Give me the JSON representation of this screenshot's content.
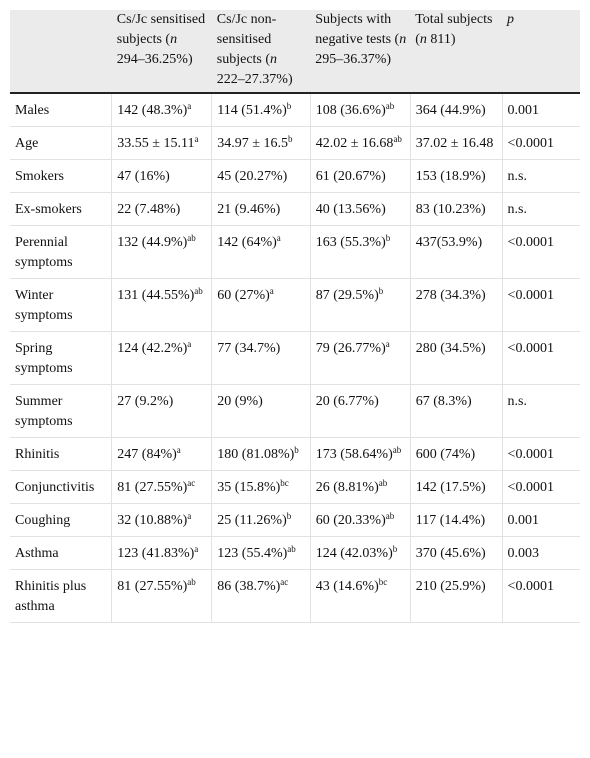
{
  "table": {
    "headers": [
      {
        "pre": "",
        "em": "",
        "post": ""
      },
      {
        "pre": "Cs/Jc sensitised subjects (",
        "em": "n",
        "post": " 294–36.25%)"
      },
      {
        "pre": "Cs/Jc non-sensitised subjects (",
        "em": "n",
        "post": " 222–27.37%)"
      },
      {
        "pre": "Subjects with negative tests (",
        "em": "n",
        "post": " 295–36.37%)"
      },
      {
        "pre": "Total subjects (",
        "em": "n",
        "post": " 811)"
      },
      {
        "pre": "",
        "em": "p",
        "post": ""
      }
    ],
    "rows": [
      {
        "label": "Males",
        "cells": [
          {
            "text": "142 (48.3%)",
            "sup": "a"
          },
          {
            "text": "114 (51.4%)",
            "sup": "b"
          },
          {
            "text": "108 (36.6%)",
            "sup": "ab"
          },
          {
            "text": "364 (44.9%)",
            "sup": ""
          },
          {
            "text": "0.001",
            "sup": ""
          }
        ]
      },
      {
        "label": "Age",
        "cells": [
          {
            "text": "33.55 ± 15.11",
            "sup": "a"
          },
          {
            "text": "34.97 ± 16.5",
            "sup": "b"
          },
          {
            "text": "42.02 ± 16.68",
            "sup": "ab"
          },
          {
            "text": "37.02 ± 16.48",
            "sup": ""
          },
          {
            "text": "<0.0001",
            "sup": ""
          }
        ]
      },
      {
        "label": "Smokers",
        "cells": [
          {
            "text": "47 (16%)",
            "sup": ""
          },
          {
            "text": "45 (20.27%)",
            "sup": ""
          },
          {
            "text": "61 (20.67%)",
            "sup": ""
          },
          {
            "text": "153 (18.9%)",
            "sup": ""
          },
          {
            "text": "n.s.",
            "sup": ""
          }
        ]
      },
      {
        "label": "Ex-smokers",
        "cells": [
          {
            "text": "22 (7.48%)",
            "sup": ""
          },
          {
            "text": "21 (9.46%)",
            "sup": ""
          },
          {
            "text": "40 (13.56%)",
            "sup": ""
          },
          {
            "text": "83 (10.23%)",
            "sup": ""
          },
          {
            "text": "n.s.",
            "sup": ""
          }
        ]
      },
      {
        "label": "Perennial symptoms",
        "cells": [
          {
            "text": "132 (44.9%)",
            "sup": "ab"
          },
          {
            "text": "142 (64%)",
            "sup": "a"
          },
          {
            "text": "163 (55.3%)",
            "sup": "b"
          },
          {
            "text": "437(53.9%)",
            "sup": ""
          },
          {
            "text": "<0.0001",
            "sup": ""
          }
        ]
      },
      {
        "label": "Winter symptoms",
        "cells": [
          {
            "text": "131 (44.55%)",
            "sup": "ab"
          },
          {
            "text": "60 (27%)",
            "sup": "a"
          },
          {
            "text": "87 (29.5%)",
            "sup": "b"
          },
          {
            "text": "278 (34.3%)",
            "sup": ""
          },
          {
            "text": "<0.0001",
            "sup": ""
          }
        ]
      },
      {
        "label": "Spring symptoms",
        "cells": [
          {
            "text": "124 (42.2%)",
            "sup": "a"
          },
          {
            "text": "77 (34.7%)",
            "sup": ""
          },
          {
            "text": "79 (26.77%)",
            "sup": "a"
          },
          {
            "text": "280 (34.5%)",
            "sup": ""
          },
          {
            "text": "<0.0001",
            "sup": ""
          }
        ]
      },
      {
        "label": "Summer symptoms",
        "cells": [
          {
            "text": "27 (9.2%)",
            "sup": ""
          },
          {
            "text": "20 (9%)",
            "sup": ""
          },
          {
            "text": "20 (6.77%)",
            "sup": ""
          },
          {
            "text": "67 (8.3%)",
            "sup": ""
          },
          {
            "text": "n.s.",
            "sup": ""
          }
        ]
      },
      {
        "label": "Rhinitis",
        "cells": [
          {
            "text": "247 (84%)",
            "sup": "a"
          },
          {
            "text": "180 (81.08%)",
            "sup": "b"
          },
          {
            "text": "173 (58.64%)",
            "sup": "ab"
          },
          {
            "text": "600 (74%)",
            "sup": ""
          },
          {
            "text": "<0.0001",
            "sup": ""
          }
        ]
      },
      {
        "label": "Conjunctivitis",
        "cells": [
          {
            "text": "81 (27.55%)",
            "sup": "ac"
          },
          {
            "text": "35 (15.8%)",
            "sup": "bc"
          },
          {
            "text": "26 (8.81%)",
            "sup": "ab"
          },
          {
            "text": "142 (17.5%)",
            "sup": ""
          },
          {
            "text": "<0.0001",
            "sup": ""
          }
        ]
      },
      {
        "label": "Coughing",
        "cells": [
          {
            "text": "32 (10.88%)",
            "sup": "a"
          },
          {
            "text": "25 (11.26%)",
            "sup": "b"
          },
          {
            "text": "60 (20.33%)",
            "sup": "ab"
          },
          {
            "text": "117 (14.4%)",
            "sup": ""
          },
          {
            "text": "0.001",
            "sup": ""
          }
        ]
      },
      {
        "label": "Asthma",
        "cells": [
          {
            "text": "123 (41.83%)",
            "sup": "a"
          },
          {
            "text": "123 (55.4%)",
            "sup": "ab"
          },
          {
            "text": "124 (42.03%)",
            "sup": "b"
          },
          {
            "text": "370 (45.6%)",
            "sup": ""
          },
          {
            "text": "0.003",
            "sup": ""
          }
        ]
      },
      {
        "label": "Rhinitis plus asthma",
        "cells": [
          {
            "text": "81 (27.55%)",
            "sup": "ab"
          },
          {
            "text": "86 (38.7%)",
            "sup": "ac"
          },
          {
            "text": "43 (14.6%)",
            "sup": "bc"
          },
          {
            "text": "210 (25.9%)",
            "sup": ""
          },
          {
            "text": "<0.0001",
            "sup": ""
          }
        ]
      }
    ]
  }
}
